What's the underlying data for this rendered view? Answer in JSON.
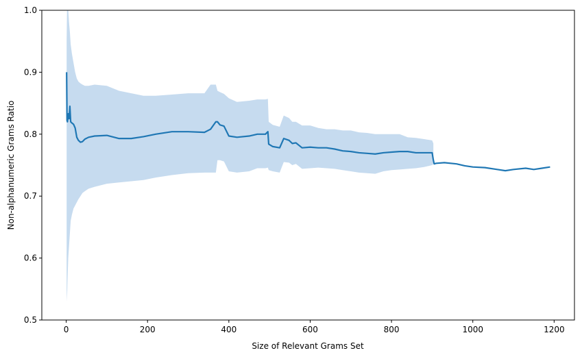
{
  "chart_data": {
    "type": "line",
    "title": "",
    "xlabel": "Size of Relevant Grams Set",
    "ylabel": "Non-alphanumeric Grams Ratio",
    "xlim": [
      -60,
      1250
    ],
    "ylim": [
      0.5,
      1.0
    ],
    "x_ticks": [
      0,
      200,
      400,
      600,
      800,
      1000,
      1200
    ],
    "y_ticks": [
      0.5,
      0.6,
      0.7,
      0.8,
      0.9,
      1.0
    ],
    "x_tick_labels": [
      "0",
      "200",
      "400",
      "600",
      "800",
      "1000",
      "1200"
    ],
    "y_tick_labels": [
      "0.5",
      "0.6",
      "0.7",
      "0.8",
      "0.9",
      "1.0"
    ],
    "grid": false,
    "line_color": "#1f77b4",
    "band_color": "#c6dbef",
    "series": [
      {
        "x": [
          1,
          2,
          3,
          5,
          7,
          9,
          11,
          14,
          18,
          22,
          26,
          30,
          35,
          40,
          46,
          55,
          70,
          100,
          130,
          160,
          190,
          220,
          260,
          300,
          340,
          355,
          368,
          372,
          378,
          388,
          400,
          420,
          450,
          470,
          490,
          496,
          498,
          508,
          525,
          535,
          548,
          556,
          565,
          580,
          600,
          620,
          640,
          660,
          680,
          700,
          720,
          740,
          760,
          780,
          800,
          820,
          840,
          860,
          880,
          900,
          903,
          905,
          910,
          930,
          960,
          980,
          1000,
          1030,
          1060,
          1080,
          1100,
          1130,
          1150,
          1170,
          1190
        ],
        "y": [
          0.9,
          0.822,
          0.82,
          0.833,
          0.825,
          0.845,
          0.82,
          0.818,
          0.816,
          0.81,
          0.795,
          0.79,
          0.787,
          0.788,
          0.792,
          0.795,
          0.797,
          0.798,
          0.793,
          0.793,
          0.796,
          0.8,
          0.804,
          0.804,
          0.803,
          0.808,
          0.82,
          0.82,
          0.815,
          0.813,
          0.797,
          0.795,
          0.797,
          0.8,
          0.8,
          0.804,
          0.784,
          0.78,
          0.778,
          0.793,
          0.79,
          0.785,
          0.786,
          0.778,
          0.779,
          0.778,
          0.778,
          0.776,
          0.773,
          0.772,
          0.77,
          0.769,
          0.768,
          0.77,
          0.771,
          0.772,
          0.772,
          0.77,
          0.77,
          0.77,
          0.758,
          0.752,
          0.753,
          0.754,
          0.752,
          0.749,
          0.747,
          0.746,
          0.743,
          0.741,
          0.743,
          0.745,
          0.743,
          0.745,
          0.747
        ]
      }
    ],
    "band": {
      "x": [
        1,
        2,
        3,
        5,
        7,
        9,
        11,
        14,
        18,
        22,
        26,
        30,
        35,
        40,
        46,
        55,
        70,
        100,
        130,
        160,
        190,
        220,
        260,
        300,
        340,
        355,
        368,
        372,
        378,
        388,
        400,
        420,
        450,
        470,
        490,
        496,
        498,
        508,
        525,
        535,
        548,
        556,
        565,
        580,
        600,
        620,
        640,
        660,
        680,
        700,
        720,
        740,
        760,
        780,
        800,
        820,
        840,
        860,
        880,
        900,
        903
      ],
      "upper": [
        0.95,
        1.0,
        1.0,
        1.0,
        0.98,
        0.965,
        0.945,
        0.93,
        0.915,
        0.9,
        0.89,
        0.885,
        0.882,
        0.88,
        0.878,
        0.878,
        0.88,
        0.878,
        0.87,
        0.866,
        0.862,
        0.862,
        0.864,
        0.866,
        0.866,
        0.88,
        0.88,
        0.87,
        0.868,
        0.865,
        0.858,
        0.852,
        0.854,
        0.856,
        0.856,
        0.857,
        0.82,
        0.815,
        0.812,
        0.83,
        0.826,
        0.82,
        0.82,
        0.814,
        0.814,
        0.81,
        0.808,
        0.808,
        0.806,
        0.806,
        0.803,
        0.802,
        0.8,
        0.8,
        0.8,
        0.8,
        0.795,
        0.794,
        0.792,
        0.79,
        0.785
      ],
      "lower": [
        0.55,
        0.53,
        0.56,
        0.6,
        0.62,
        0.64,
        0.66,
        0.67,
        0.68,
        0.685,
        0.69,
        0.695,
        0.7,
        0.705,
        0.708,
        0.712,
        0.715,
        0.72,
        0.722,
        0.724,
        0.726,
        0.73,
        0.734,
        0.737,
        0.738,
        0.738,
        0.738,
        0.758,
        0.758,
        0.756,
        0.74,
        0.738,
        0.74,
        0.745,
        0.745,
        0.746,
        0.742,
        0.74,
        0.738,
        0.755,
        0.754,
        0.75,
        0.752,
        0.744,
        0.745,
        0.746,
        0.745,
        0.744,
        0.742,
        0.74,
        0.738,
        0.737,
        0.736,
        0.74,
        0.742,
        0.743,
        0.744,
        0.745,
        0.747,
        0.75,
        0.752
      ]
    }
  }
}
